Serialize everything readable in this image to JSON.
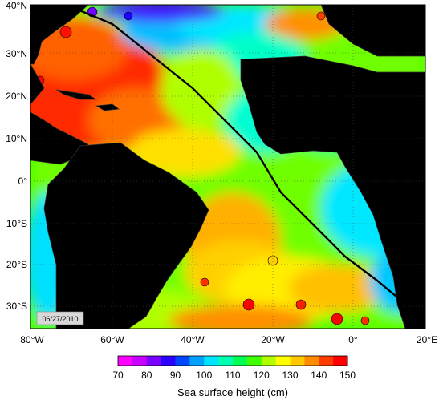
{
  "map": {
    "date_stamp": "06/27/2010",
    "lon_ticks": [
      "80°W",
      "60°W",
      "40°W",
      "20°W",
      "0°",
      "20°E"
    ],
    "lat_ticks": [
      "40°N",
      "30°N",
      "20°N",
      "10°N",
      "0°",
      "10°S",
      "20°S",
      "30°S"
    ],
    "colorbar": {
      "title": "Sea surface height (cm)",
      "ticks": [
        "70",
        "80",
        "90",
        "100",
        "110",
        "120",
        "130",
        "140",
        "150"
      ],
      "colors": [
        "#ff00ff",
        "#c800ff",
        "#7a00ff",
        "#2a00ff",
        "#0046ff",
        "#00a0ff",
        "#00e4ff",
        "#00ffb4",
        "#00ff50",
        "#40ff00",
        "#b0ff00",
        "#ffff00",
        "#ffc800",
        "#ff8c00",
        "#ff3c00",
        "#ff0000"
      ]
    },
    "colors": {
      "land": "#8a8a8a",
      "track": "#000000"
    }
  }
}
